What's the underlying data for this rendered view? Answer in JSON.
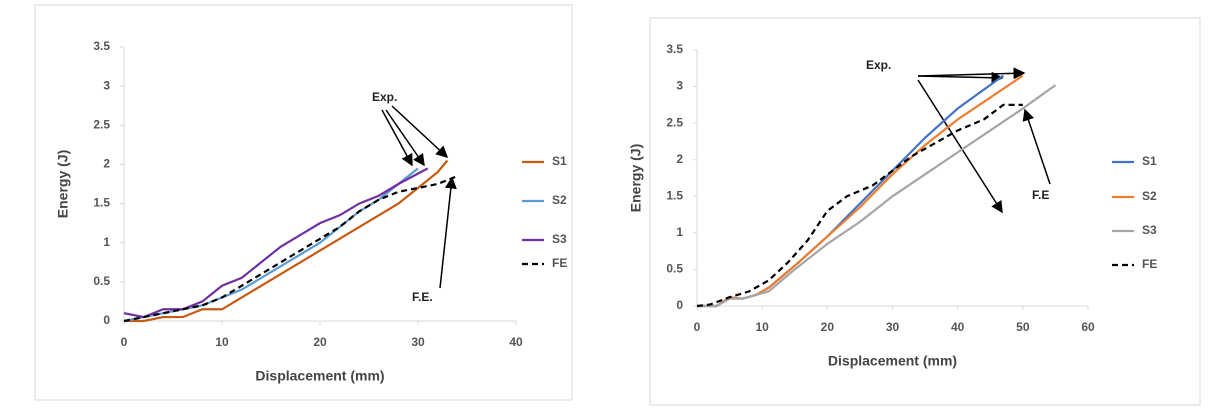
{
  "chart_data": [
    {
      "type": "line",
      "x_label": "Displacement (mm)",
      "y_label": "Energy (J)",
      "xlim": [
        0,
        40
      ],
      "xticks": [
        0,
        10,
        20,
        30,
        40
      ],
      "ylim": [
        0,
        3.5
      ],
      "yticks": [
        0,
        0.5,
        1,
        1.5,
        2,
        2.5,
        3,
        3.5
      ],
      "legend": "right",
      "grid": false,
      "annotations": [
        "Exp.",
        "F.E."
      ],
      "series": [
        {
          "name": "S1",
          "color": "#c55a11",
          "dash": false,
          "x": [
            0,
            2,
            4,
            6,
            8,
            10,
            12,
            14,
            16,
            18,
            20,
            22,
            24,
            26,
            28,
            30,
            32,
            33
          ],
          "values": [
            0,
            0,
            0.05,
            0.05,
            0.15,
            0.15,
            0.3,
            0.45,
            0.6,
            0.75,
            0.9,
            1.05,
            1.2,
            1.35,
            1.5,
            1.7,
            1.9,
            2.05
          ]
        },
        {
          "name": "S2",
          "color": "#5b9bd5",
          "dash": false,
          "x": [
            0,
            2,
            4,
            6,
            8,
            10,
            12,
            14,
            16,
            18,
            20,
            22,
            24,
            26,
            28,
            30
          ],
          "values": [
            0,
            0.05,
            0.1,
            0.15,
            0.2,
            0.3,
            0.4,
            0.55,
            0.7,
            0.85,
            1,
            1.2,
            1.4,
            1.55,
            1.75,
            1.95
          ]
        },
        {
          "name": "S3",
          "color": "#7030a0",
          "dash": false,
          "x": [
            0,
            2,
            4,
            6,
            8,
            10,
            12,
            14,
            16,
            18,
            20,
            22,
            24,
            26,
            28,
            31
          ],
          "values": [
            0.1,
            0.05,
            0.15,
            0.15,
            0.25,
            0.45,
            0.55,
            0.75,
            0.95,
            1.1,
            1.25,
            1.35,
            1.5,
            1.6,
            1.75,
            1.95
          ]
        },
        {
          "name": "FE",
          "color": "#000000",
          "dash": true,
          "x": [
            0,
            2,
            4,
            6,
            8,
            10,
            12,
            14,
            16,
            18,
            20,
            22,
            24,
            26,
            28,
            30,
            32,
            34
          ],
          "values": [
            0,
            0.05,
            0.1,
            0.15,
            0.2,
            0.3,
            0.45,
            0.6,
            0.75,
            0.9,
            1.05,
            1.2,
            1.4,
            1.55,
            1.65,
            1.7,
            1.75,
            1.85
          ]
        }
      ]
    },
    {
      "type": "line",
      "x_label": "Displacement (mm)",
      "y_label": "Energy (J)",
      "xlim": [
        0,
        60
      ],
      "xticks": [
        0,
        10,
        20,
        30,
        40,
        50,
        60
      ],
      "ylim": [
        0,
        3.5
      ],
      "yticks": [
        0,
        0.5,
        1,
        1.5,
        2,
        2.5,
        3,
        3.5
      ],
      "legend": "right",
      "grid": false,
      "annotations": [
        "Exp.",
        "F.E"
      ],
      "series": [
        {
          "name": "S1",
          "color": "#4472c4",
          "dash": false,
          "x": [
            0,
            3,
            5,
            7,
            9,
            11,
            13,
            15,
            20,
            25,
            30,
            35,
            40,
            47
          ],
          "values": [
            0,
            0,
            0.12,
            0.1,
            0.15,
            0.25,
            0.4,
            0.55,
            0.95,
            1.4,
            1.85,
            2.3,
            2.7,
            3.15
          ]
        },
        {
          "name": "S2",
          "color": "#ed7d31",
          "dash": false,
          "x": [
            0,
            3,
            5,
            7,
            9,
            11,
            13,
            15,
            20,
            25,
            30,
            35,
            40,
            45,
            50
          ],
          "values": [
            0,
            0,
            0.12,
            0.1,
            0.15,
            0.25,
            0.4,
            0.55,
            0.95,
            1.35,
            1.8,
            2.2,
            2.55,
            2.85,
            3.15
          ]
        },
        {
          "name": "S3",
          "color": "#a5a5a5",
          "dash": false,
          "x": [
            0,
            3,
            5,
            7,
            9,
            11,
            13,
            15,
            20,
            25,
            30,
            35,
            40,
            45,
            50,
            55
          ],
          "values": [
            0,
            0,
            0.1,
            0.1,
            0.15,
            0.2,
            0.35,
            0.5,
            0.85,
            1.15,
            1.5,
            1.8,
            2.1,
            2.4,
            2.7,
            3.02
          ]
        },
        {
          "name": "FE",
          "color": "#000000",
          "dash": true,
          "x": [
            0,
            2,
            5,
            8,
            11,
            14,
            17,
            20,
            23,
            27,
            30,
            33,
            36,
            40,
            44,
            47,
            50
          ],
          "values": [
            0,
            0.02,
            0.12,
            0.2,
            0.35,
            0.6,
            0.9,
            1.3,
            1.5,
            1.65,
            1.85,
            2.05,
            2.2,
            2.4,
            2.55,
            2.75,
            2.75
          ]
        }
      ]
    }
  ]
}
